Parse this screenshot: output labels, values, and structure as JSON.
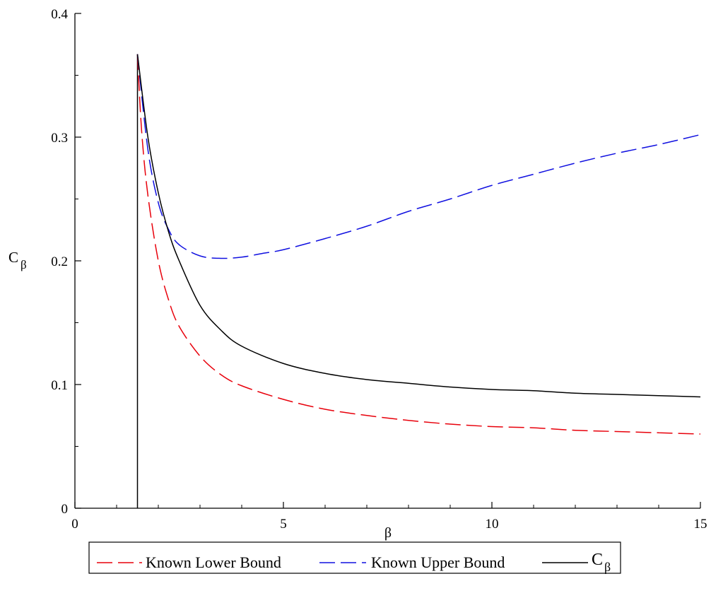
{
  "chart_data": {
    "type": "line",
    "xlabel": "β",
    "ylabel": {
      "main": "C",
      "sub": "β"
    },
    "xlim": [
      0,
      15
    ],
    "ylim": [
      0,
      0.4
    ],
    "x_ticks": [
      0,
      5,
      10,
      15
    ],
    "x_tick_labels": [
      "0",
      "5",
      "10",
      "15"
    ],
    "x_minor_step": 1,
    "y_ticks": [
      0,
      0.1,
      0.2,
      0.3,
      0.4
    ],
    "y_tick_labels": [
      "0",
      "0.1",
      "0.2",
      "0.3",
      "0.4"
    ],
    "y_minor_step": 0.05,
    "grid": false,
    "legend_position": "bottom",
    "vertical_line": {
      "x": 1.5,
      "y_top": 0.367
    },
    "series": [
      {
        "name": "Known Lower Bound",
        "color": "#e8000b",
        "dash": "long-dash",
        "x": [
          1.5,
          1.6,
          1.75,
          2.0,
          2.25,
          2.5,
          3.0,
          3.5,
          4.0,
          5.0,
          6.0,
          7.0,
          8.0,
          9.0,
          10.0,
          11.0,
          12.0,
          13.0,
          14.0,
          15.0
        ],
        "y": [
          0.367,
          0.305,
          0.253,
          0.2,
          0.168,
          0.147,
          0.123,
          0.108,
          0.099,
          0.088,
          0.08,
          0.075,
          0.071,
          0.068,
          0.066,
          0.065,
          0.063,
          0.062,
          0.061,
          0.06
        ]
      },
      {
        "name": "Known Upper Bound",
        "color": "#1010e0",
        "dash": "long-dash",
        "x": [
          1.5,
          1.75,
          2.0,
          2.25,
          2.5,
          3.0,
          3.5,
          4.0,
          4.5,
          5.0,
          6.0,
          7.0,
          8.0,
          9.0,
          10.0,
          11.0,
          12.0,
          13.0,
          14.0,
          15.0
        ],
        "y": [
          0.367,
          0.29,
          0.247,
          0.225,
          0.213,
          0.204,
          0.202,
          0.203,
          0.206,
          0.209,
          0.218,
          0.228,
          0.24,
          0.25,
          0.261,
          0.27,
          0.279,
          0.287,
          0.294,
          0.302
        ]
      },
      {
        "name": "C_β",
        "name_main": "C",
        "name_sub": "β",
        "color": "#000000",
        "dash": "solid",
        "x": [
          1.5,
          1.75,
          2.0,
          2.25,
          2.5,
          3.0,
          3.5,
          4.0,
          5.0,
          6.0,
          7.0,
          8.0,
          9.0,
          10.0,
          11.0,
          12.0,
          13.0,
          14.0,
          15.0
        ],
        "y": [
          0.367,
          0.3,
          0.255,
          0.223,
          0.2,
          0.164,
          0.144,
          0.131,
          0.117,
          0.109,
          0.104,
          0.101,
          0.098,
          0.096,
          0.095,
          0.093,
          0.092,
          0.091,
          0.09
        ]
      }
    ]
  }
}
